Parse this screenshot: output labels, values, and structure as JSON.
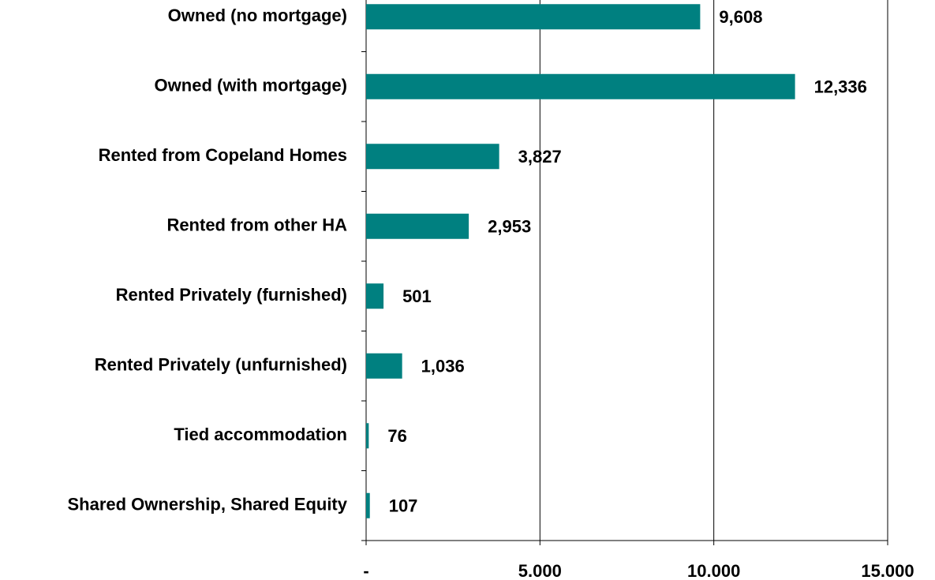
{
  "chart_data": {
    "type": "bar",
    "orientation": "horizontal",
    "categories": [
      "Owned (no mortgage)",
      "Owned (with mortgage)",
      "Rented from Copeland Homes",
      "Rented from other HA",
      "Rented Privately (furnished)",
      "Rented Privately (unfurnished)",
      "Tied accommodation",
      "Shared Ownership, Shared Equity"
    ],
    "values": [
      9608,
      12336,
      3827,
      2953,
      501,
      1036,
      76,
      107
    ],
    "value_labels": [
      "9,608",
      "12,336",
      "3,827",
      "2,953",
      "501",
      "1,036",
      "76",
      "107"
    ],
    "color": "#008080",
    "xlim": [
      0,
      15000
    ],
    "xticks": [
      {
        "value": 0,
        "label": "-"
      },
      {
        "value": 5000,
        "label": "5.000"
      },
      {
        "value": 10000,
        "label": "10.000"
      },
      {
        "value": 15000,
        "label": "15.000"
      }
    ],
    "grid": true
  }
}
